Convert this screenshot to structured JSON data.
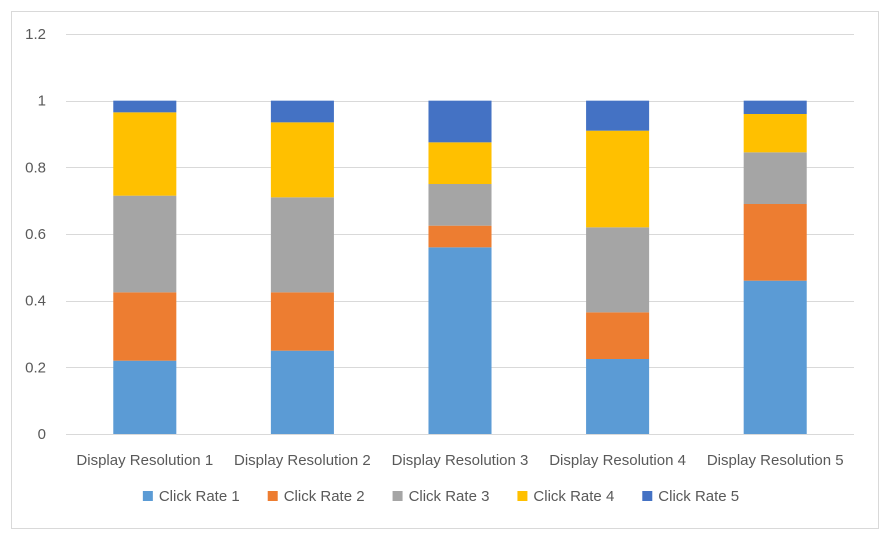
{
  "chart_data": {
    "type": "bar",
    "stacked": true,
    "title": "",
    "xlabel": "",
    "ylabel": "",
    "categories": [
      "Display Resolution 1",
      "Display Resolution 2",
      "Display Resolution 3",
      "Display Resolution 4",
      "Display Resolution 5"
    ],
    "ylim": [
      0,
      1.2
    ],
    "yticks": [
      "0",
      "0.2",
      "0.4",
      "0.6",
      "0.8",
      "1",
      "1.2"
    ],
    "grid": true,
    "legend_position": "bottom",
    "series": [
      {
        "name": "Click Rate 1",
        "color": "#5B9BD5",
        "values": [
          0.22,
          0.25,
          0.56,
          0.225,
          0.46
        ]
      },
      {
        "name": "Click Rate 2",
        "color": "#ED7D31",
        "values": [
          0.205,
          0.175,
          0.065,
          0.14,
          0.23
        ]
      },
      {
        "name": "Click Rate 3",
        "color": "#A5A5A5",
        "values": [
          0.29,
          0.285,
          0.125,
          0.255,
          0.155
        ]
      },
      {
        "name": "Click Rate 4",
        "color": "#FFC000",
        "values": [
          0.25,
          0.225,
          0.125,
          0.29,
          0.115
        ]
      },
      {
        "name": "Click Rate 5",
        "color": "#4472C4",
        "values": [
          0.035,
          0.065,
          0.125,
          0.09,
          0.04
        ]
      }
    ]
  }
}
